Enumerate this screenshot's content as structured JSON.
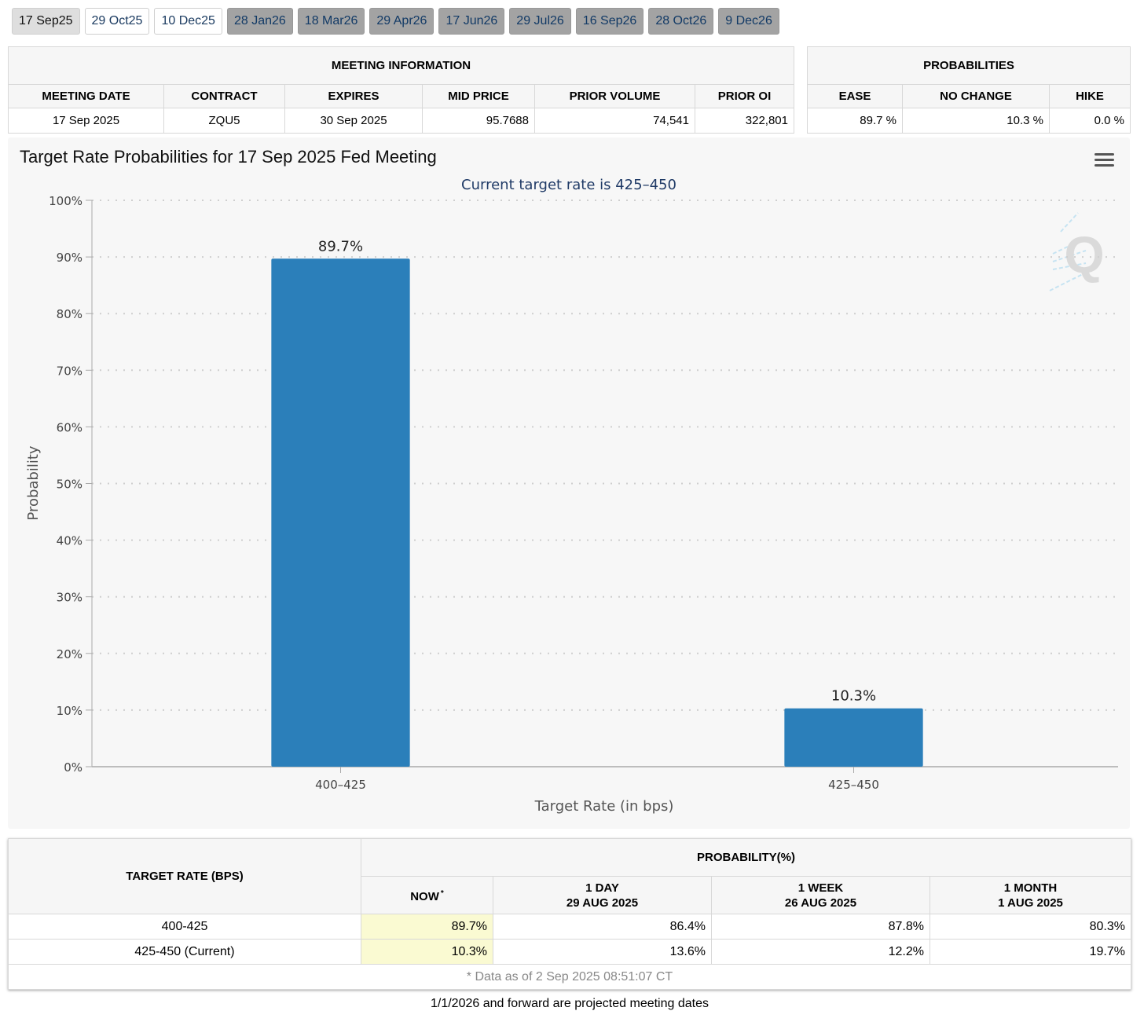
{
  "tabs": [
    {
      "label": "17 Sep25",
      "style": "active"
    },
    {
      "label": "29 Oct25",
      "style": "light"
    },
    {
      "label": "10 Dec25",
      "style": "light"
    },
    {
      "label": "28 Jan26",
      "style": "grey"
    },
    {
      "label": "18 Mar26",
      "style": "grey"
    },
    {
      "label": "29 Apr26",
      "style": "grey"
    },
    {
      "label": "17 Jun26",
      "style": "grey"
    },
    {
      "label": "29 Jul26",
      "style": "grey"
    },
    {
      "label": "16 Sep26",
      "style": "grey"
    },
    {
      "label": "28 Oct26",
      "style": "grey"
    },
    {
      "label": "9 Dec26",
      "style": "grey"
    }
  ],
  "meeting_info": {
    "title": "MEETING INFORMATION",
    "headers": {
      "meeting_date": "MEETING DATE",
      "contract": "CONTRACT",
      "expires": "EXPIRES",
      "mid_price": "MID PRICE",
      "prior_volume": "PRIOR VOLUME",
      "prior_oi": "PRIOR OI"
    },
    "values": {
      "meeting_date": "17 Sep 2025",
      "contract": "ZQU5",
      "expires": "30 Sep 2025",
      "mid_price": "95.7688",
      "prior_volume": "74,541",
      "prior_oi": "322,801"
    }
  },
  "probabilities": {
    "title": "PROBABILITIES",
    "headers": {
      "ease": "EASE",
      "no_change": "NO CHANGE",
      "hike": "HIKE"
    },
    "values": {
      "ease": "89.7 %",
      "no_change": "10.3 %",
      "hike": "0.0 %"
    }
  },
  "chart": {
    "title": "Target Rate Probabilities for 17 Sep 2025 Fed Meeting",
    "menu_icon": "hamburger-menu-icon",
    "watermark_icon": "q-logo-icon",
    "bar_color": "#2b7fba"
  },
  "chart_data": {
    "type": "bar",
    "title": "Target Rate Probabilities for 17 Sep 2025 Fed Meeting",
    "subtitle": "Current target rate is 425–450",
    "categories": [
      "400–425",
      "425–450"
    ],
    "values": [
      89.7,
      10.3
    ],
    "data_labels": [
      "89.7%",
      "10.3%"
    ],
    "xlabel": "Target Rate (in bps)",
    "ylabel": "Probability",
    "ylim": [
      0,
      100
    ],
    "yticks": [
      "0%",
      "10%",
      "20%",
      "30%",
      "40%",
      "50%",
      "60%",
      "70%",
      "80%",
      "90%",
      "100%"
    ],
    "grid": true
  },
  "prob_table": {
    "target_rate_header": "TARGET RATE (BPS)",
    "probability_header": "PROBABILITY(%)",
    "columns": [
      {
        "line1": "NOW",
        "line2": "",
        "asterisk": "*"
      },
      {
        "line1": "1 DAY",
        "line2": "29 AUG 2025",
        "asterisk": ""
      },
      {
        "line1": "1 WEEK",
        "line2": "26 AUG 2025",
        "asterisk": ""
      },
      {
        "line1": "1 MONTH",
        "line2": "1 AUG 2025",
        "asterisk": ""
      }
    ],
    "rows": [
      {
        "rate": "400-425",
        "now": "89.7%",
        "day": "86.4%",
        "week": "87.8%",
        "month": "80.3%"
      },
      {
        "rate": "425-450 (Current)",
        "now": "10.3%",
        "day": "13.6%",
        "week": "12.2%",
        "month": "19.7%"
      }
    ],
    "footnote": "* Data as of 2 Sep 2025 08:51:07 CT"
  },
  "footer_note": "1/1/2026 and forward are projected meeting dates"
}
